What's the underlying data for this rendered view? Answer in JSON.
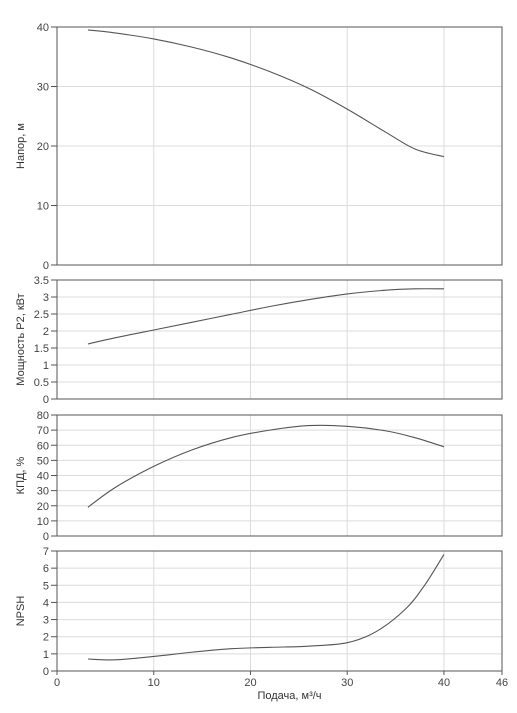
{
  "chart_data": [
    {
      "type": "line",
      "ylabel": "Напор, м",
      "ylim": [
        0,
        40
      ],
      "yticks": [
        "0",
        "10",
        "20",
        "30",
        "40"
      ],
      "xlim": [
        0,
        46
      ],
      "grid": true,
      "series": [
        {
          "x": [
            3.2,
            6,
            10,
            14,
            18,
            22,
            26,
            30,
            34,
            37,
            40
          ],
          "y": [
            39.5,
            39.0,
            38.0,
            36.6,
            34.8,
            32.5,
            29.7,
            26.2,
            22.3,
            19.5,
            18.2
          ]
        }
      ]
    },
    {
      "type": "line",
      "ylabel": "Мощность P2, кВт",
      "ylim": [
        0,
        3.5
      ],
      "yticks": [
        "0",
        "0.5",
        "1",
        "1.5",
        "2",
        "2.5",
        "3",
        "3.5"
      ],
      "xlim": [
        0,
        46
      ],
      "grid": true,
      "series": [
        {
          "x": [
            3.2,
            6,
            10,
            14,
            18,
            22,
            26,
            30,
            34,
            37,
            40
          ],
          "y": [
            1.62,
            1.8,
            2.03,
            2.26,
            2.49,
            2.72,
            2.92,
            3.09,
            3.2,
            3.24,
            3.24
          ]
        }
      ]
    },
    {
      "type": "line",
      "ylabel": "КПД, %",
      "ylim": [
        0,
        80
      ],
      "yticks": [
        "0",
        "10",
        "20",
        "30",
        "40",
        "50",
        "60",
        "70",
        "80"
      ],
      "xlim": [
        0,
        46
      ],
      "grid": true,
      "series": [
        {
          "x": [
            3.2,
            6,
            10,
            14,
            18,
            22,
            26,
            30,
            34,
            37,
            40
          ],
          "y": [
            19,
            32,
            46,
            57,
            65,
            70,
            73,
            72.5,
            69.5,
            65,
            59
          ]
        }
      ]
    },
    {
      "type": "line",
      "ylabel": "NPSH",
      "ylim": [
        0,
        7
      ],
      "yticks": [
        "0",
        "1",
        "2",
        "3",
        "4",
        "5",
        "6",
        "7"
      ],
      "xlim": [
        0,
        46
      ],
      "xticks": [
        "0",
        "10",
        "20",
        "30",
        "40",
        "46"
      ],
      "xlabel": "Подача, м³/ч",
      "grid": true,
      "series": [
        {
          "x": [
            3.2,
            6,
            10,
            14,
            18,
            22,
            26,
            30,
            33,
            36,
            38,
            40
          ],
          "y": [
            0.7,
            0.65,
            0.85,
            1.1,
            1.3,
            1.38,
            1.45,
            1.65,
            2.3,
            3.6,
            5.0,
            6.8
          ]
        }
      ]
    }
  ]
}
